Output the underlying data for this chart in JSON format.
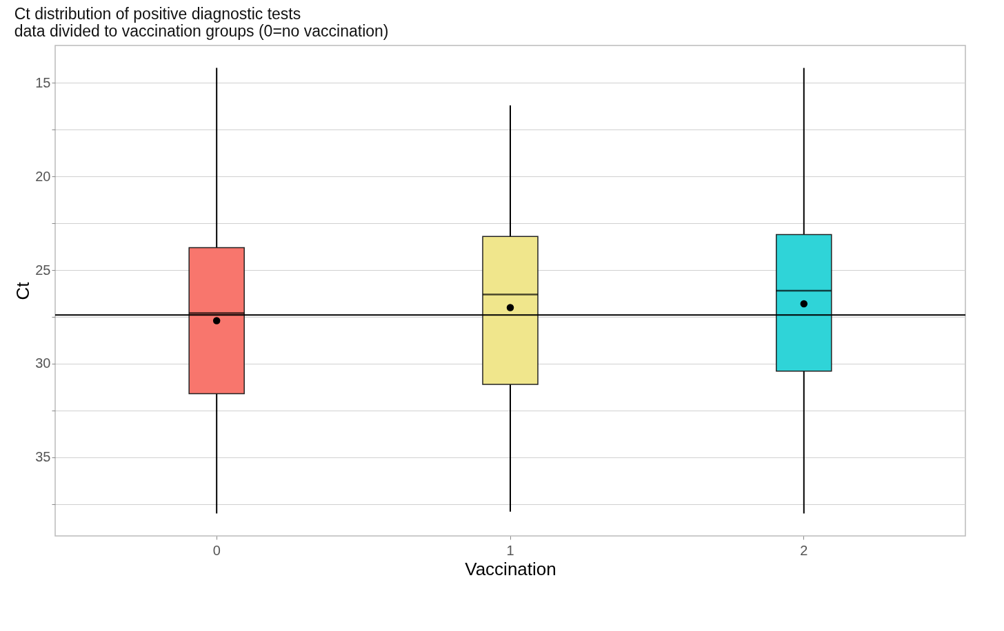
{
  "chart_data": {
    "type": "box",
    "title": "Ct distribution of positive diagnostic tests",
    "subtitle": "data divided to vaccination groups (0=no vaccination)",
    "xlabel": "Vaccination",
    "ylabel": "Ct",
    "categories": [
      "0",
      "1",
      "2"
    ],
    "colors": [
      "#f8766d",
      "#f0e68c",
      "#2fd4d8"
    ],
    "boxes": [
      {
        "low": 14.2,
        "q1": 23.8,
        "median": 27.3,
        "q3": 31.6,
        "high": 38.0,
        "mean": 27.7
      },
      {
        "low": 16.2,
        "q1": 23.2,
        "median": 26.3,
        "q3": 31.1,
        "high": 37.9,
        "mean": 27.0
      },
      {
        "low": 14.2,
        "q1": 23.1,
        "median": 26.1,
        "q3": 30.4,
        "high": 38.0,
        "mean": 26.8
      }
    ],
    "ylim": [
      39.2,
      13.0
    ],
    "yticks": [
      15,
      {
        "value": 17.5,
        "label": null
      },
      20,
      {
        "value": 22.5,
        "label": null
      },
      25,
      {
        "value": 27.5,
        "label": null
      },
      30,
      {
        "value": 32.5,
        "label": null
      },
      35,
      {
        "value": 37.5,
        "label": null
      }
    ],
    "ref_lines": [
      {
        "axis": "y",
        "value": 27.4,
        "color": "#000000"
      }
    ],
    "grid": "y"
  }
}
